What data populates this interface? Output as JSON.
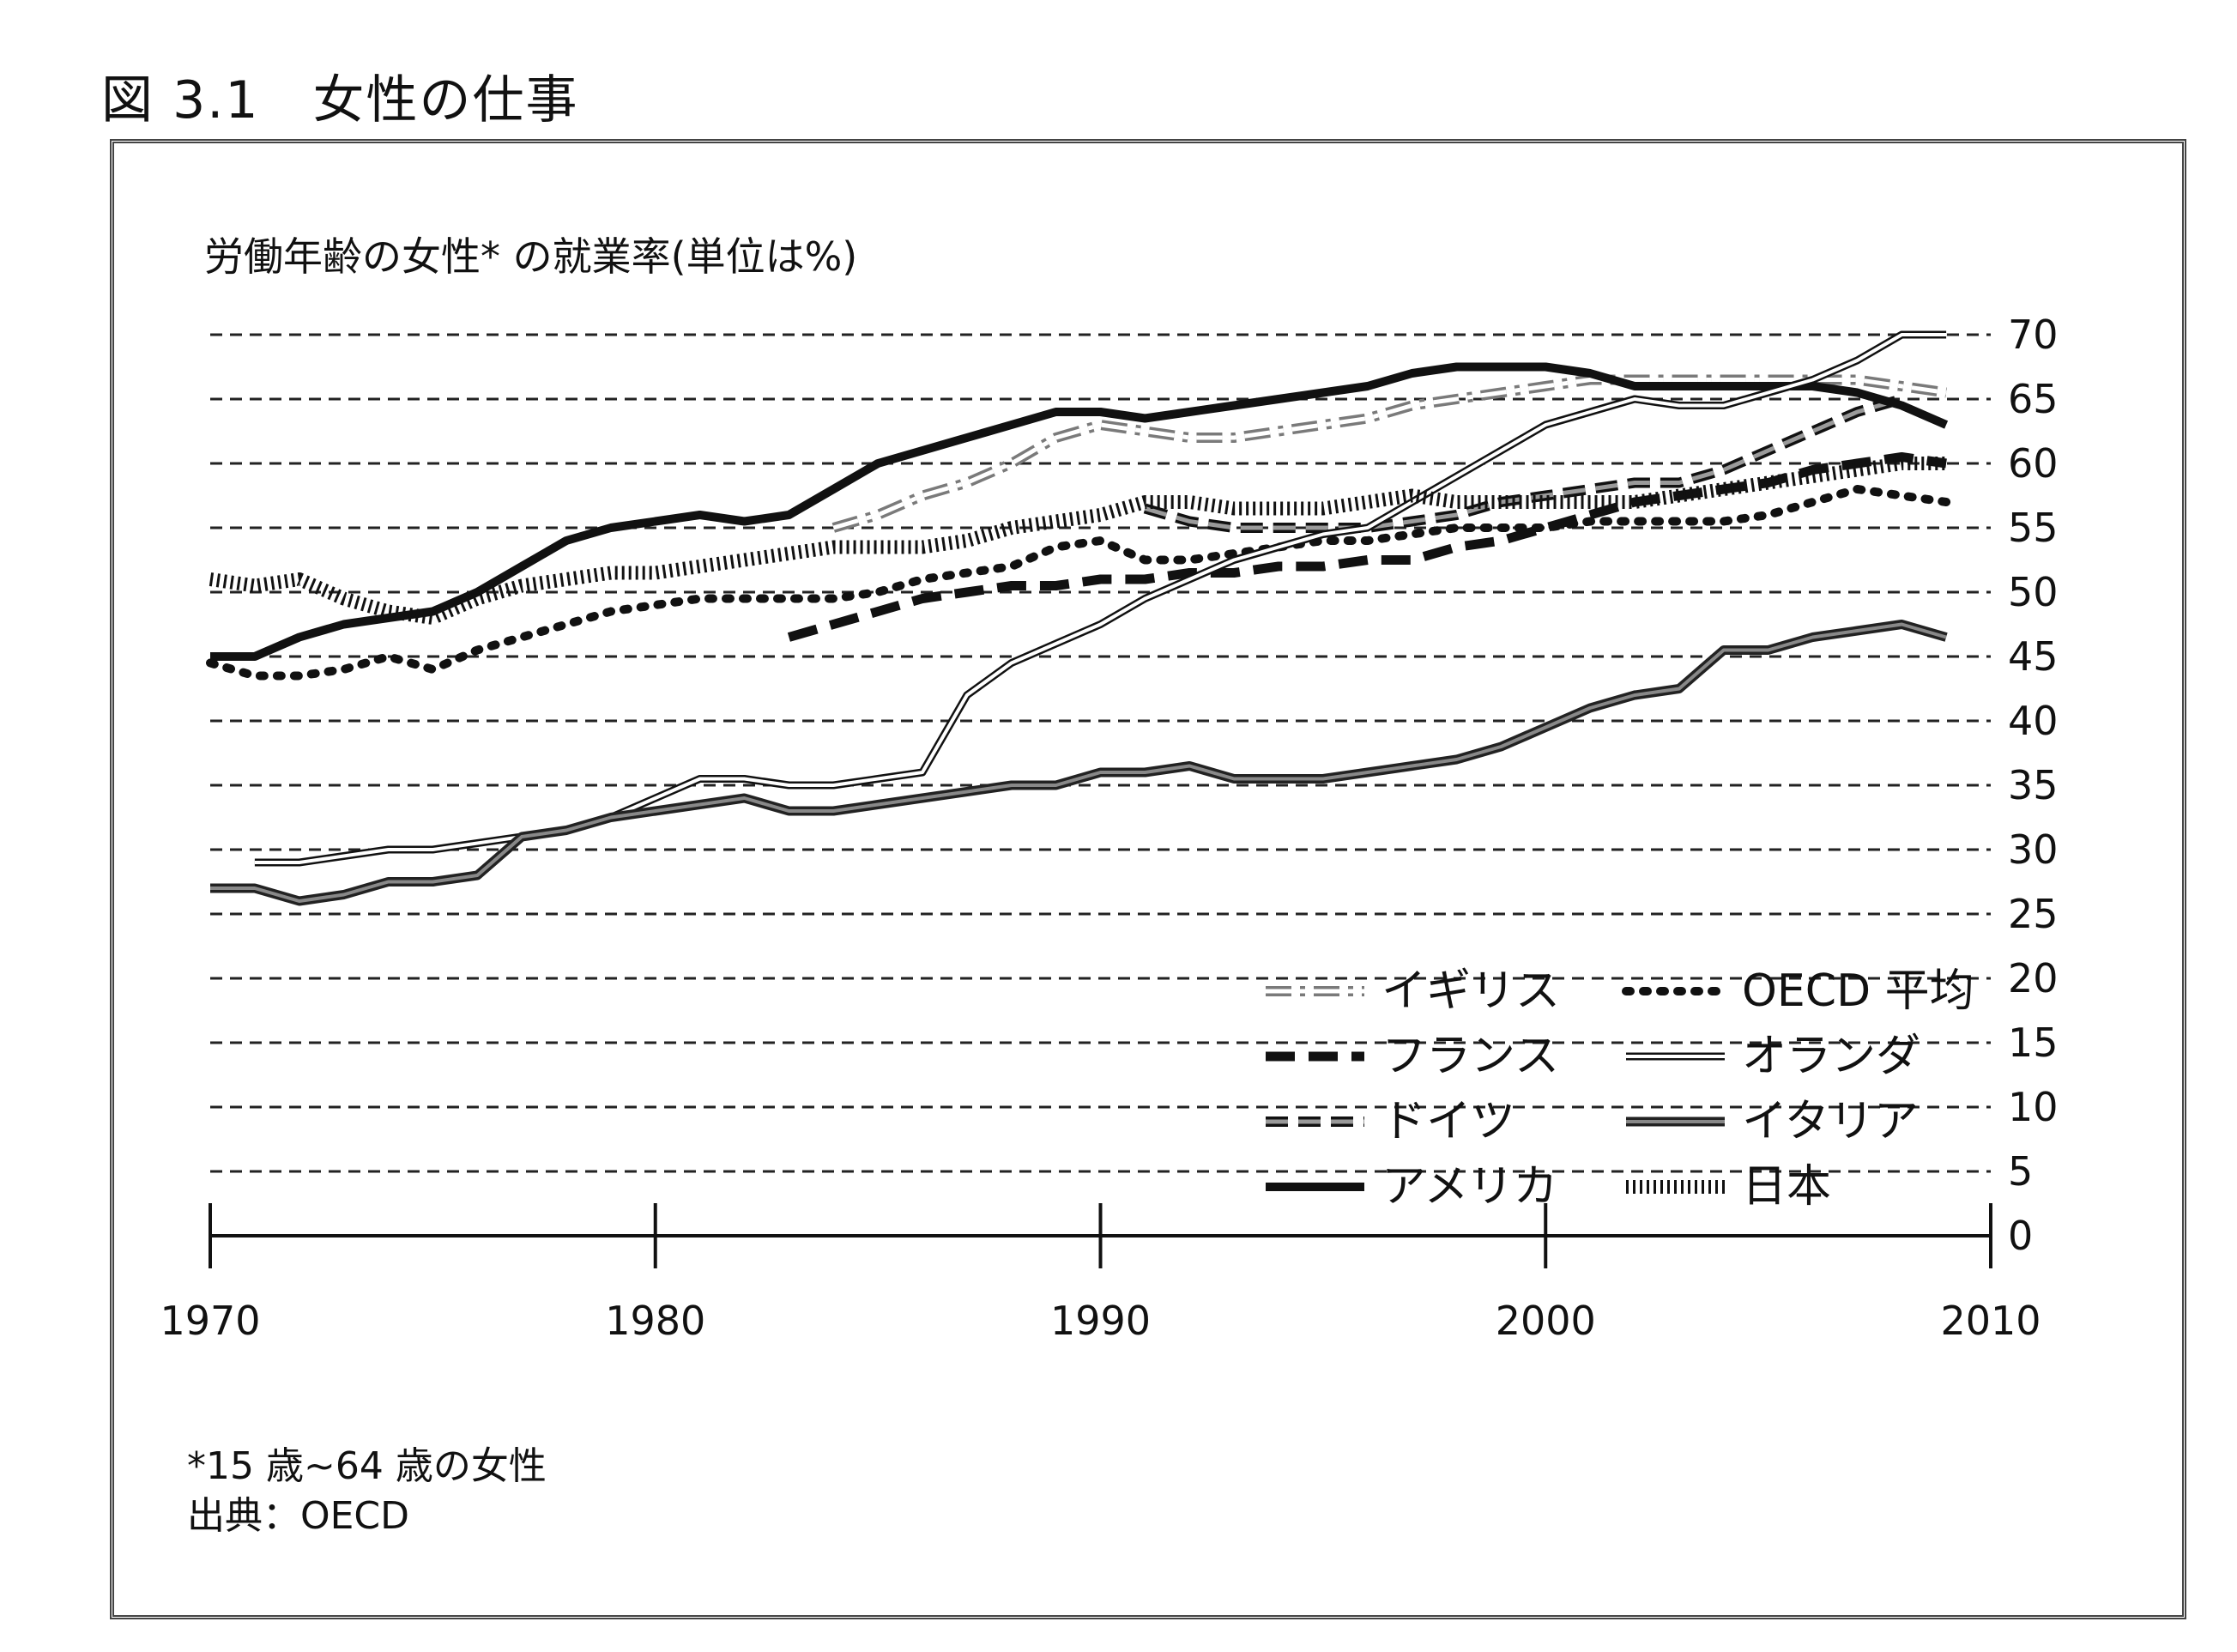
{
  "figure_caption": "図 3.1　女性の仕事",
  "footnote": {
    "age_note": "*15 歳~64 歳の女性",
    "source": "出典：OECD"
  },
  "colors": {
    "ink": "#111111",
    "gray": "#7a7a7a",
    "grid": "#222222"
  },
  "chart_data": {
    "type": "line",
    "title": "労働年齢の女性* の就業率(単位は%)",
    "xlabel": "",
    "ylabel": "",
    "xlim": [
      1970,
      2010
    ],
    "ylim": [
      0,
      70
    ],
    "x_ticks": [
      1970,
      1980,
      1990,
      2000,
      2010
    ],
    "y_ticks": [
      0,
      5,
      10,
      15,
      20,
      25,
      30,
      35,
      40,
      45,
      50,
      55,
      60,
      65,
      70
    ],
    "grid": "horizontal dashed",
    "y_axis_side": "right",
    "legend_position": "bottom-right",
    "series": [
      {
        "name": "イギリス",
        "style": "uk",
        "x": [
          1984,
          1985,
          1986,
          1987,
          1988,
          1989,
          1990,
          1991,
          1992,
          1993,
          1994,
          1995,
          1996,
          1997,
          1998,
          1999,
          2000,
          2001,
          2002,
          2003,
          2004,
          2005,
          2006,
          2007,
          2008,
          2009
        ],
        "values": [
          55,
          56,
          57.5,
          58.5,
          60,
          62,
          63,
          62.5,
          62,
          62,
          62.5,
          63,
          63.5,
          64.5,
          65,
          65.5,
          66,
          66.5,
          66.5,
          66.5,
          66.5,
          66.5,
          66.5,
          66.5,
          66,
          65.5
        ]
      },
      {
        "name": "フランス",
        "style": "france",
        "x": [
          1983,
          1984,
          1985,
          1986,
          1987,
          1988,
          1989,
          1990,
          1991,
          1992,
          1993,
          1994,
          1995,
          1996,
          1997,
          1998,
          1999,
          2000,
          2001,
          2002,
          2003,
          2004,
          2005,
          2006,
          2007,
          2008,
          2009
        ],
        "values": [
          46.5,
          47.5,
          48.5,
          49.5,
          50,
          50.5,
          50.5,
          51,
          51,
          51.5,
          51.5,
          52,
          52,
          52.5,
          52.5,
          53.5,
          54,
          55,
          56,
          57,
          57.5,
          58,
          58.5,
          59.5,
          60,
          60.5,
          60
        ]
      },
      {
        "name": "ドイツ",
        "style": "germany",
        "x": [
          1991,
          1992,
          1993,
          1994,
          1995,
          1996,
          1997,
          1998,
          1999,
          2000,
          2001,
          2002,
          2003,
          2004,
          2005,
          2006,
          2007,
          2008
        ],
        "values": [
          56.5,
          55.5,
          55,
          55,
          55,
          55,
          55.5,
          56,
          57,
          57.5,
          58,
          58.5,
          58.5,
          59.5,
          61,
          62.5,
          64,
          65
        ]
      },
      {
        "name": "アメリカ",
        "style": "usa",
        "x": [
          1970,
          1971,
          1972,
          1973,
          1974,
          1975,
          1976,
          1977,
          1978,
          1979,
          1980,
          1981,
          1982,
          1983,
          1984,
          1985,
          1986,
          1987,
          1988,
          1989,
          1990,
          1991,
          1992,
          1993,
          1994,
          1995,
          1996,
          1997,
          1998,
          1999,
          2000,
          2001,
          2002,
          2003,
          2004,
          2005,
          2006,
          2007,
          2008,
          2009
        ],
        "values": [
          45,
          45,
          46.5,
          47.5,
          48,
          48.5,
          50,
          52,
          54,
          55,
          55.5,
          56,
          55.5,
          56,
          58,
          60,
          61,
          62,
          63,
          64,
          64,
          63.5,
          64,
          64.5,
          65,
          65.5,
          66,
          67,
          67.5,
          67.5,
          67.5,
          67,
          66,
          66,
          66,
          66,
          66,
          65.5,
          64.5,
          63
        ]
      },
      {
        "name": "OECD 平均",
        "style": "oecd",
        "x": [
          1970,
          1971,
          1972,
          1973,
          1974,
          1975,
          1976,
          1977,
          1978,
          1979,
          1980,
          1981,
          1982,
          1983,
          1984,
          1985,
          1986,
          1987,
          1988,
          1989,
          1990,
          1991,
          1992,
          1993,
          1994,
          1995,
          1996,
          1997,
          1998,
          1999,
          2000,
          2001,
          2002,
          2003,
          2004,
          2005,
          2006,
          2007,
          2008,
          2009
        ],
        "values": [
          44.5,
          43.5,
          43.5,
          44,
          45,
          44,
          45.5,
          46.5,
          47.5,
          48.5,
          49,
          49.5,
          49.5,
          49.5,
          49.5,
          50,
          51,
          51.5,
          52,
          53.5,
          54,
          52.5,
          52.5,
          53,
          53.5,
          54,
          54,
          54.5,
          55,
          55,
          55,
          55.5,
          55.5,
          55.5,
          55.5,
          56,
          57,
          58,
          57.5,
          57
        ]
      },
      {
        "name": "オランダ",
        "style": "nl",
        "x": [
          1971,
          1972,
          1973,
          1974,
          1975,
          1976,
          1977,
          1978,
          1979,
          1980,
          1981,
          1982,
          1983,
          1984,
          1985,
          1986,
          1987,
          1988,
          1989,
          1990,
          1991,
          1992,
          1993,
          1994,
          1995,
          1996,
          1997,
          1998,
          1999,
          2000,
          2001,
          2002,
          2003,
          2004,
          2005,
          2006,
          2007,
          2008,
          2009
        ],
        "values": [
          29,
          29,
          29.5,
          30,
          30,
          30.5,
          31,
          31.5,
          32.5,
          34,
          35.5,
          35.5,
          35,
          35,
          35.5,
          36,
          42,
          44.5,
          46,
          47.5,
          49.5,
          51,
          52.5,
          53.5,
          54.5,
          55,
          57,
          59,
          61,
          63,
          64,
          65,
          64.5,
          64.5,
          65.5,
          66.5,
          68,
          70,
          70
        ]
      },
      {
        "name": "イタリア",
        "style": "italy",
        "x": [
          1970,
          1971,
          1972,
          1973,
          1974,
          1975,
          1976,
          1977,
          1978,
          1979,
          1980,
          1981,
          1982,
          1983,
          1984,
          1985,
          1986,
          1987,
          1988,
          1989,
          1990,
          1991,
          1992,
          1993,
          1994,
          1995,
          1996,
          1997,
          1998,
          1999,
          2000,
          2001,
          2002,
          2003,
          2004,
          2005,
          2006,
          2007,
          2008,
          2009
        ],
        "values": [
          27,
          27,
          26,
          26.5,
          27.5,
          27.5,
          28,
          31,
          31.5,
          32.5,
          33,
          33.5,
          34,
          33,
          33,
          33.5,
          34,
          34.5,
          35,
          35,
          36,
          36,
          36.5,
          35.5,
          35.5,
          35.5,
          36,
          36.5,
          37,
          38,
          39.5,
          41,
          42,
          42.5,
          45.5,
          45.5,
          46.5,
          47,
          47.5,
          46.5
        ]
      },
      {
        "name": "日本",
        "style": "japan",
        "x": [
          1970,
          1971,
          1972,
          1973,
          1974,
          1975,
          1976,
          1977,
          1978,
          1979,
          1980,
          1981,
          1982,
          1983,
          1984,
          1985,
          1986,
          1987,
          1988,
          1989,
          1990,
          1991,
          1992,
          1993,
          1994,
          1995,
          1996,
          1997,
          1998,
          1999,
          2000,
          2001,
          2002,
          2003,
          2004,
          2005,
          2006,
          2007,
          2008,
          2009
        ],
        "values": [
          51,
          50.5,
          51,
          49.5,
          48.5,
          48,
          49.5,
          50.5,
          51,
          51.5,
          51.5,
          52,
          52.5,
          53,
          53.5,
          53.5,
          53.5,
          54,
          55,
          55.5,
          56,
          57,
          57,
          56.5,
          56.5,
          56.5,
          57,
          57.5,
          57,
          57,
          57,
          57,
          57,
          57.5,
          58,
          58.5,
          59,
          59.5,
          60,
          60
        ]
      }
    ]
  }
}
